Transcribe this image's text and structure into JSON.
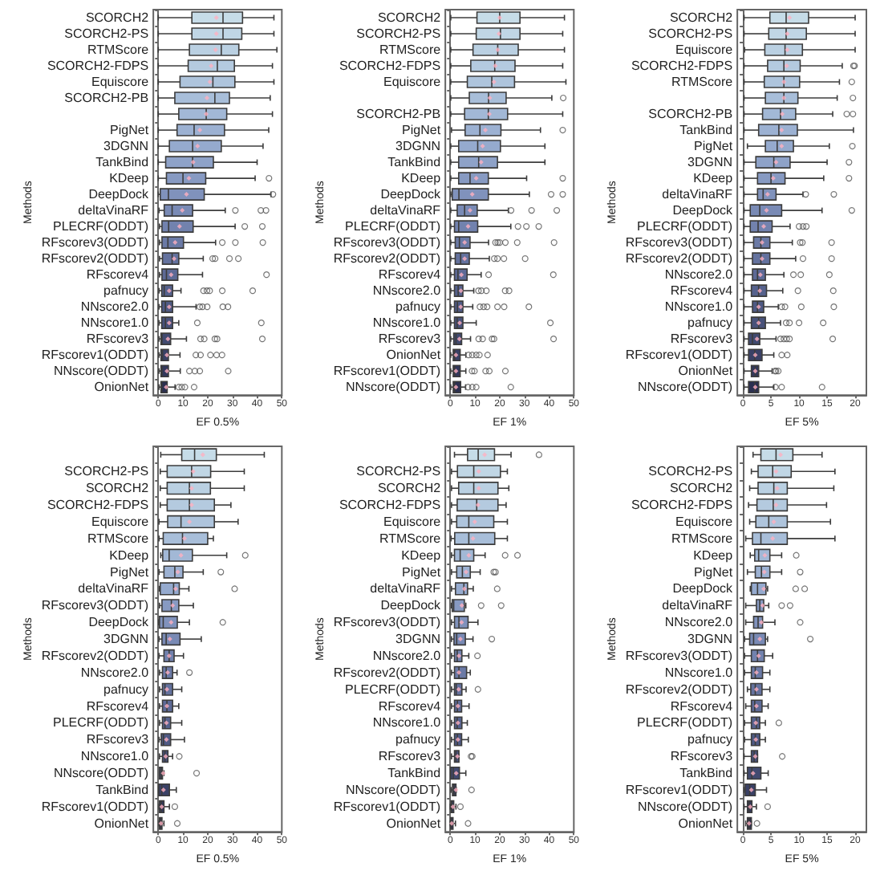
{
  "chart_data": [
    {
      "type": "box",
      "orientation": "horizontal",
      "xlabel": "EF 0.5%",
      "ylabel": "Methods",
      "xlim": [
        -2,
        50
      ],
      "xticks": [
        0,
        10,
        20,
        30,
        40,
        50
      ],
      "categories": [
        "SCORCH2",
        "SCORCH2-PS",
        "RTMScore",
        "SCORCH2-FDPS",
        "Equiscore",
        "SCORCH2-PB",
        null,
        "PigNet",
        "3DGNN",
        "TankBind",
        "KDeep",
        "DeepDock",
        "deltaVinaRF",
        "PLECRF(ODDT)",
        "RFscorev3(ODDT)",
        "RFscorev2(ODDT)",
        "RFscorev4",
        "pafnucy",
        "NNscore2.0",
        "NNscore1.0",
        "RFscorev3",
        "RFscorev1(ODDT)",
        "NNscore(ODDT)",
        "OnionNet"
      ],
      "colors": [
        "#c6dce8",
        "#c0d6e5",
        "#bad0e2",
        "#b4cadf",
        "#aec4dc",
        "#a8bed9",
        "#a2b8d6",
        "#9cb1d2",
        "#95aace",
        "#8ea2c8",
        "#879ac2",
        "#8092bc",
        "#798ab5",
        "#7282ae",
        "#6b7aa6",
        "#64729e",
        "#5d6a96",
        "#56628d",
        "#4f5a84",
        "#48527a",
        "#414a70",
        "#3a4166",
        "#33385b",
        "#2b2f50"
      ],
      "boxes": [
        {
          "low": 0,
          "q1": 13.6,
          "median": 26.2,
          "q3": 34.1,
          "high": 46.8,
          "mean": 23.5
        },
        {
          "low": 0,
          "q1": 13.6,
          "median": 26.2,
          "q3": 33.8,
          "high": 46.8,
          "mean": 23.5
        },
        {
          "low": 0,
          "q1": 12.6,
          "median": 25.5,
          "q3": 32.6,
          "high": 48,
          "mean": 23.2
        },
        {
          "low": 0,
          "q1": 12.1,
          "median": 23.9,
          "q3": 30.8,
          "high": 46.2,
          "mean": 21.4
        },
        {
          "low": 0,
          "q1": 8.8,
          "median": 22.1,
          "q3": 31,
          "high": 46.8,
          "mean": 20.9
        },
        {
          "low": 0,
          "q1": 6.7,
          "median": 22.9,
          "q3": 28.8,
          "high": 45.3,
          "mean": 19.7
        },
        {
          "low": 0,
          "q1": 8.3,
          "median": 19.4,
          "q3": 27.7,
          "high": 46.2,
          "mean": 19.4
        },
        {
          "low": 0,
          "q1": 7.6,
          "median": 14.5,
          "q3": 26.8,
          "high": 44.7,
          "mean": 16.8
        },
        {
          "low": 0,
          "q1": 4.5,
          "median": 13.9,
          "q3": 25.5,
          "high": 42.4,
          "mean": 15.9
        },
        {
          "low": 0,
          "q1": 3,
          "median": 13.9,
          "q3": 22.3,
          "high": 40,
          "mean": 14.1
        },
        {
          "low": 0,
          "q1": 3.3,
          "median": 10,
          "q3": 19.2,
          "high": 39.2,
          "mean": 12.4,
          "outliers": [
            44.8
          ]
        },
        {
          "low": 0,
          "q1": 0.8,
          "median": 4.1,
          "q3": 18.6,
          "high": 45.6,
          "mean": 11.4,
          "outliers": [
            46.4
          ]
        },
        {
          "low": 0.3,
          "q1": 2.4,
          "median": 5.6,
          "q3": 13.9,
          "high": 27.1,
          "mean": 9.7,
          "outliers": [
            31.2,
            41.5,
            43.6
          ]
        },
        {
          "low": 0.5,
          "q1": 1.5,
          "median": 4.2,
          "q3": 14.1,
          "high": 31.1,
          "mean": 8.6,
          "outliers": [
            35,
            42.1
          ]
        },
        {
          "low": 0.5,
          "q1": 1.5,
          "median": 3.9,
          "q3": 10.2,
          "high": 23.2,
          "mean": 6.8,
          "outliers": [
            25.9,
            31.2,
            42.3
          ]
        },
        {
          "low": 0.5,
          "q1": 1.7,
          "median": 5.6,
          "q3": 8.3,
          "high": 18.2,
          "mean": 6.4,
          "outliers": [
            22,
            23,
            28.8,
            32.4
          ]
        },
        {
          "low": 0.5,
          "q1": 1.5,
          "median": 3.3,
          "q3": 7.9,
          "high": 17.9,
          "mean": 5.2,
          "outliers": [
            43.8
          ]
        },
        {
          "low": 0.3,
          "q1": 1.4,
          "median": 2.4,
          "q3": 5.8,
          "high": 9.2,
          "mean": 4.4,
          "outliers": [
            18.3,
            19.7,
            20.8,
            25.9,
            38.2
          ]
        },
        {
          "low": 0.3,
          "q1": 1.4,
          "median": 2.9,
          "q3": 5.8,
          "high": 15.3,
          "mean": 4.4,
          "outliers": [
            16.8,
            17.9,
            19.8,
            26.1,
            28.2
          ]
        },
        {
          "low": 0.3,
          "q1": 1.4,
          "median": 2.9,
          "q3": 5.8,
          "high": 8.3,
          "mean": 4.4,
          "outliers": [
            15.8,
            41.7
          ]
        },
        {
          "low": 0.3,
          "q1": 1.1,
          "median": 1.5,
          "q3": 5,
          "high": 11.4,
          "mean": 3.9,
          "outliers": [
            17.1,
            18.6,
            22.9,
            23.8,
            42.1
          ]
        },
        {
          "low": 0.3,
          "q1": 1.1,
          "median": 1.7,
          "q3": 4.1,
          "high": 8.8,
          "mean": 3.5,
          "outliers": [
            15.2,
            17.1,
            21.1,
            23.6,
            25.8
          ]
        },
        {
          "low": 0.3,
          "q1": 1.1,
          "median": 1.5,
          "q3": 4.1,
          "high": 8.9,
          "mean": 3.5,
          "outliers": [
            12.6,
            14.8,
            16.8,
            28.3
          ]
        },
        {
          "low": 0.3,
          "q1": 1.1,
          "median": 1.4,
          "q3": 3.6,
          "high": 6.8,
          "mean": 3.2,
          "outliers": [
            8.3,
            9.5,
            10.8,
            14.5
          ]
        }
      ]
    },
    {
      "type": "box",
      "orientation": "horizontal",
      "xlabel": "EF 1%",
      "ylabel": "Methods",
      "xlim": [
        -2,
        50
      ],
      "xticks": [
        0,
        10,
        20,
        30,
        40,
        50
      ],
      "categories": [
        "SCORCH2",
        "SCORCH2-PS",
        "RTMScore",
        "SCORCH2-FDPS",
        "Equiscore",
        null,
        "SCORCH2-PB",
        "PigNet",
        "3DGNN",
        "TankBind",
        "KDeep",
        "DeepDock",
        "deltaVinaRF",
        "PLECRF(ODDT)",
        "RFscorev3(ODDT)",
        "RFscorev2(ODDT)",
        "RFscorev4",
        "NNscore2.0",
        "pafnucy",
        "NNscore1.0",
        "RFscorev3",
        "OnionNet",
        "RFscorev1(ODDT)",
        "NNscore(ODDT)"
      ],
      "colors": [
        "#c6dce8",
        "#c0d6e5",
        "#bad0e2",
        "#b4cadf",
        "#aec4dc",
        "#a8bed9",
        "#a2b8d6",
        "#9cb1d2",
        "#95aace",
        "#8ea2c8",
        "#879ac2",
        "#8092bc",
        "#798ab5",
        "#7282ae",
        "#6b7aa6",
        "#64729e",
        "#5d6a96",
        "#56628d",
        "#4f5a84",
        "#48527a",
        "#414a70",
        "#3a4166",
        "#33385b",
        "#2b2f50"
      ],
      "boxes": [
        {
          "low": 0.2,
          "q1": 10.8,
          "median": 20,
          "q3": 28.2,
          "high": 46.2,
          "mean": 20
        },
        {
          "low": 0.2,
          "q1": 10.5,
          "median": 20.3,
          "q3": 28.2,
          "high": 45.5,
          "mean": 19.7
        },
        {
          "low": 0.2,
          "q1": 9.2,
          "median": 19.2,
          "q3": 27.5,
          "high": 46.2,
          "mean": 19.2
        },
        {
          "low": 0.2,
          "q1": 8.3,
          "median": 18,
          "q3": 26.2,
          "high": 45.5,
          "mean": 18.2
        },
        {
          "low": 0.2,
          "q1": 6.9,
          "median": 16.8,
          "q3": 26,
          "high": 46.8,
          "mean": 17.7
        },
        {
          "low": 0.2,
          "q1": 7.7,
          "median": 15.5,
          "q3": 22.6,
          "high": 41.1,
          "mean": 16,
          "outliers": [
            45.7
          ]
        },
        {
          "low": 0.2,
          "q1": 5.8,
          "median": 15.4,
          "q3": 23.2,
          "high": 45.5,
          "mean": 15.8
        },
        {
          "low": 0.5,
          "q1": 6,
          "median": 12,
          "q3": 20.5,
          "high": 36.5,
          "mean": 14.2,
          "outliers": [
            45.5
          ]
        },
        {
          "low": 0.2,
          "q1": 3.4,
          "median": 11.1,
          "q3": 20.3,
          "high": 38.3,
          "mean": 13.1
        },
        {
          "low": 0.2,
          "q1": 3.4,
          "median": 11.5,
          "q3": 19.1,
          "high": 38.3,
          "mean": 12.5
        },
        {
          "low": 0.2,
          "q1": 3.4,
          "median": 8,
          "q3": 15.4,
          "high": 30.9,
          "mean": 10.5,
          "outliers": [
            45.5
          ]
        },
        {
          "low": 0.2,
          "q1": 0.8,
          "median": 3.5,
          "q3": 15.4,
          "high": 32,
          "mean": 8.9,
          "outliers": [
            40.8,
            45.5
          ]
        },
        {
          "low": 0.2,
          "q1": 2.8,
          "median": 5.8,
          "q3": 10.9,
          "high": 23.5,
          "mean": 8,
          "outliers": [
            24.6,
            32.9,
            43.1
          ]
        },
        {
          "low": 0.2,
          "q1": 1.7,
          "median": 3.4,
          "q3": 11.1,
          "high": 24.5,
          "mean": 7.2,
          "outliers": [
            27.4,
            30.8,
            35.8
          ]
        },
        {
          "low": 0.2,
          "q1": 2,
          "median": 3.7,
          "q3": 8,
          "high": 15.5,
          "mean": 5.8,
          "outliers": [
            18.3,
            19.2,
            20,
            22.3,
            27.1,
            42
          ]
        },
        {
          "low": 0.2,
          "q1": 2,
          "median": 4.2,
          "q3": 7.7,
          "high": 15.8,
          "mean": 5.8,
          "outliers": [
            17.8,
            19.1,
            21.7,
            30.3
          ]
        },
        {
          "low": 0.2,
          "q1": 1.7,
          "median": 3.1,
          "q3": 6.8,
          "high": 12.5,
          "mean": 4.5,
          "outliers": [
            15.5,
            41.7
          ]
        },
        {
          "low": 0.2,
          "q1": 1.7,
          "median": 3.2,
          "q3": 5.1,
          "high": 9.5,
          "mean": 4.3,
          "outliers": [
            11.4,
            12.6,
            14.6,
            22.2,
            23.8
          ]
        },
        {
          "low": 0.2,
          "q1": 1.7,
          "median": 2.9,
          "q3": 5.1,
          "high": 9.1,
          "mean": 4.2,
          "outliers": [
            12,
            13.5,
            14.9,
            19.1,
            21.8,
            31.8
          ]
        },
        {
          "low": 0.2,
          "q1": 1.7,
          "median": 2.8,
          "q3": 5.1,
          "high": 10.5,
          "mean": 3.8,
          "outliers": [
            40.5
          ]
        },
        {
          "low": 0.2,
          "q1": 1.4,
          "median": 2.3,
          "q3": 4.6,
          "high": 8.2,
          "mean": 3.7,
          "outliers": [
            11.5,
            13.1,
            16.9,
            17.7,
            41.8
          ]
        },
        {
          "low": 0.2,
          "q1": 1.2,
          "median": 1.8,
          "q3": 4,
          "high": 6.3,
          "mean": 2.3,
          "outliers": [
            7.4,
            8.9,
            10.5,
            11.8,
            15.1
          ]
        },
        {
          "low": 0.2,
          "q1": 1.2,
          "median": 1.8,
          "q3": 4,
          "high": 6.3,
          "mean": 2.3,
          "outliers": [
            8.8,
            9.8,
            14.3,
            15.8,
            22.3
          ]
        },
        {
          "low": 0.2,
          "q1": 1.2,
          "median": 1.8,
          "q3": 4.2,
          "high": 6.2,
          "mean": 2.3,
          "outliers": [
            7.2,
            8.9,
            10.5,
            24.5
          ]
        }
      ]
    },
    {
      "type": "box",
      "orientation": "horizontal",
      "xlabel": "EF 5%",
      "ylabel": "Methods",
      "xlim": [
        -1,
        22
      ],
      "xticks": [
        0,
        5,
        10,
        15,
        20
      ],
      "categories": [
        "SCORCH2",
        "SCORCH2-PS",
        "Equiscore",
        "SCORCH2-FDPS",
        "RTMScore",
        null,
        "SCORCH2-PB",
        "TankBind",
        "PigNet",
        "3DGNN",
        "KDeep",
        "deltaVinaRF",
        "DeepDock",
        "PLECRF(ODDT)",
        "RFscorev3(ODDT)",
        "RFscorev2(ODDT)",
        "NNscore2.0",
        "RFscorev4",
        "NNscore1.0",
        "pafnucy",
        "RFscorev3",
        "RFscorev1(ODDT)",
        "OnionNet",
        "NNscore(ODDT)"
      ],
      "colors": [
        "#c6dce8",
        "#c0d6e5",
        "#bad0e2",
        "#b4cadf",
        "#aec4dc",
        "#a8bed9",
        "#a2b8d6",
        "#9cb1d2",
        "#95aace",
        "#8ea2c8",
        "#879ac2",
        "#8092bc",
        "#798ab5",
        "#7282ae",
        "#6b7aa6",
        "#64729e",
        "#5d6a96",
        "#56628d",
        "#4f5a84",
        "#48527a",
        "#414a70",
        "#3a4166",
        "#33385b",
        "#2b2f50"
      ],
      "boxes": [
        {
          "low": 0.2,
          "q1": 4.8,
          "median": 7.7,
          "q3": 11.7,
          "high": 20,
          "mean": 8.3
        },
        {
          "low": 0.2,
          "q1": 4.6,
          "median": 7.7,
          "q3": 11.3,
          "high": 20,
          "mean": 7.9
        },
        {
          "low": 0.3,
          "q1": 3.9,
          "median": 7.5,
          "q3": 10.6,
          "high": 20,
          "mean": 7.9
        },
        {
          "low": 0.2,
          "q1": 4.4,
          "median": 7.3,
          "q3": 10.2,
          "high": 17.7,
          "mean": 7.8,
          "outliers": [
            19.7,
            19.9
          ]
        },
        {
          "low": 0.2,
          "q1": 3.8,
          "median": 7.3,
          "q3": 10.1,
          "high": 17.2,
          "mean": 7.3,
          "outliers": [
            19.4
          ]
        },
        {
          "low": 0.2,
          "q1": 4,
          "median": 7.3,
          "q3": 9.8,
          "high": 16.8,
          "mean": 7.3,
          "outliers": [
            19.6
          ]
        },
        {
          "low": 0.2,
          "q1": 3.5,
          "median": 6.7,
          "q3": 9.4,
          "high": 16,
          "mean": 7,
          "outliers": [
            18.5,
            19.6
          ]
        },
        {
          "low": 0.2,
          "q1": 2.8,
          "median": 6.4,
          "q3": 9.7,
          "high": 19.7,
          "mean": 6.9
        },
        {
          "low": 0.8,
          "q1": 4,
          "median": 6.1,
          "q3": 9,
          "high": 15.4,
          "mean": 6.9,
          "outliers": [
            19.5
          ]
        },
        {
          "low": 0.2,
          "q1": 2.3,
          "median": 5.5,
          "q3": 8.4,
          "high": 15,
          "mean": 5.9,
          "outliers": [
            18.9
          ]
        },
        {
          "low": 0.2,
          "q1": 2.6,
          "median": 5,
          "q3": 7.5,
          "high": 14.4,
          "mean": 5.4,
          "outliers": [
            18.9
          ]
        },
        {
          "low": 0.2,
          "q1": 2.6,
          "median": 3.6,
          "q3": 5.9,
          "high": 10.7,
          "mean": 4.4,
          "outliers": [
            11.2,
            16.2
          ]
        },
        {
          "low": 0.2,
          "q1": 1.3,
          "median": 3,
          "q3": 6.9,
          "high": 14.1,
          "mean": 4.2,
          "outliers": [
            19.4
          ]
        },
        {
          "low": 0.2,
          "q1": 1.3,
          "median": 2.7,
          "q3": 5.2,
          "high": 8.4,
          "mean": 3.7,
          "outliers": [
            10,
            10.7,
            11.3
          ]
        },
        {
          "low": 0.2,
          "q1": 1.9,
          "median": 3.2,
          "q3": 4.8,
          "high": 8.8,
          "mean": 3.4,
          "outliers": [
            10.2,
            10.6,
            15.8
          ]
        },
        {
          "low": 0.2,
          "q1": 1.7,
          "median": 3.2,
          "q3": 4.8,
          "high": 9.4,
          "mean": 3.4,
          "outliers": [
            10.7,
            15.8
          ]
        },
        {
          "low": 0.2,
          "q1": 1.7,
          "median": 2.6,
          "q3": 4,
          "high": 7.3,
          "mean": 3.1,
          "outliers": [
            9,
            10.3,
            15.4
          ]
        },
        {
          "low": 0.2,
          "q1": 1.5,
          "median": 2.8,
          "q3": 4.2,
          "high": 7.1,
          "mean": 3,
          "outliers": [
            9.8,
            16.1
          ]
        },
        {
          "low": 0.2,
          "q1": 1.7,
          "median": 2.6,
          "q3": 3.7,
          "high": 6.3,
          "mean": 2.8,
          "outliers": [
            6.9,
            7.5,
            10.4,
            16.2
          ]
        },
        {
          "low": 0.2,
          "q1": 1.5,
          "median": 2.8,
          "q3": 4,
          "high": 6.7,
          "mean": 2.8,
          "outliers": [
            7.7,
            8.3,
            10,
            14.3
          ]
        },
        {
          "low": 0.2,
          "q1": 1,
          "median": 1.7,
          "q3": 3,
          "high": 5.9,
          "mean": 2.5,
          "outliers": [
            6.7,
            7.3,
            7.8,
            8.3,
            16
          ]
        },
        {
          "low": 0.2,
          "q1": 1,
          "median": 2.1,
          "q3": 3.4,
          "high": 5.5,
          "mean": 2.2,
          "outliers": [
            6.9,
            7.9
          ]
        },
        {
          "low": 0.2,
          "q1": 1.5,
          "median": 2.2,
          "q3": 2.8,
          "high": 5.2,
          "mean": 2.2,
          "outliers": [
            5.7,
            5.9,
            6.3
          ]
        },
        {
          "low": 0.2,
          "q1": 1,
          "median": 2.1,
          "q3": 2.8,
          "high": 5.5,
          "mean": 2.2,
          "outliers": [
            5.8,
            6.9,
            14.1
          ]
        }
      ]
    },
    {
      "type": "box",
      "orientation": "horizontal",
      "xlabel": "EF 0.5%",
      "ylabel": "Methods",
      "xlim": [
        -2,
        50
      ],
      "xticks": [
        0,
        10,
        20,
        30,
        40,
        50
      ],
      "categories": [
        null,
        "SCORCH2-PS",
        "SCORCH2",
        "SCORCH2-FDPS",
        "Equiscore",
        "RTMScore",
        "KDeep",
        "PigNet",
        "deltaVinaRF",
        "RFscorev3(ODDT)",
        "DeepDock",
        "3DGNN",
        "RFscorev2(ODDT)",
        "NNscore2.0",
        "pafnucy",
        "RFscorev4",
        "PLECRF(ODDT)",
        "RFscorev3",
        "NNscore1.0",
        "NNscore(ODDT)",
        "TankBind",
        "RFscorev1(ODDT)",
        "OnionNet"
      ],
      "colors": [
        "#c6dce8",
        "#c0d6e5",
        "#bad0e2",
        "#b4cadf",
        "#aec4dc",
        "#a8bed9",
        "#a2b8d6",
        "#9cb1d2",
        "#95aace",
        "#879ac2",
        "#8092bc",
        "#798ab5",
        "#7282ae",
        "#6b7aa6",
        "#64729e",
        "#5d6a96",
        "#56628d",
        "#4f5a84",
        "#48527a",
        "#414a70",
        "#3a4166",
        "#33385b",
        "#2b2f50"
      ],
      "boxes": [
        {
          "low": 1,
          "q1": 9.5,
          "median": 14.7,
          "q3": 23.5,
          "high": 42.9,
          "mean": 18
        },
        {
          "low": 0.8,
          "q1": 3.6,
          "median": 13.5,
          "q3": 21.2,
          "high": 34.8,
          "mean": 14.1
        },
        {
          "low": 0.8,
          "q1": 3.6,
          "median": 12.6,
          "q3": 21.1,
          "high": 34.8,
          "mean": 13.5
        },
        {
          "low": 0.8,
          "q1": 3.6,
          "median": 12.6,
          "q3": 22.7,
          "high": 29.4,
          "mean": 13.5
        },
        {
          "low": 0.3,
          "q1": 3.8,
          "median": 9.2,
          "q3": 22.7,
          "high": 32.3,
          "mean": 12.6
        },
        {
          "low": 0.3,
          "q1": 2,
          "median": 9.8,
          "q3": 20,
          "high": 22.3,
          "mean": 10.6
        },
        {
          "low": 1,
          "q1": 1.8,
          "median": 4.4,
          "q3": 13.8,
          "high": 27.7,
          "mean": 9.2,
          "outliers": [
            35.2
          ]
        },
        {
          "low": 0.3,
          "q1": 2.3,
          "median": 6.7,
          "q3": 10,
          "high": 18.2,
          "mean": 7.9,
          "outliers": [
            25.3
          ]
        },
        {
          "low": 0.5,
          "q1": 0.8,
          "median": 6.2,
          "q3": 8.5,
          "high": 12.4,
          "mean": 7,
          "outliers": [
            30.9
          ]
        },
        {
          "low": 0.5,
          "q1": 1.5,
          "median": 5.3,
          "q3": 8.3,
          "high": 14.2,
          "mean": 5.8
        },
        {
          "low": 0.2,
          "q1": 0.5,
          "median": 2,
          "q3": 7.7,
          "high": 12.6,
          "mean": 5.2,
          "outliers": [
            26.1
          ]
        },
        {
          "low": 0.3,
          "q1": 1.5,
          "median": 3.2,
          "q3": 8.8,
          "high": 17.4,
          "mean": 4.7
        },
        {
          "low": 0.3,
          "q1": 2.3,
          "median": 4.4,
          "q3": 6.4,
          "high": 10.2,
          "mean": 4.4
        },
        {
          "low": 0.5,
          "q1": 1.7,
          "median": 3.2,
          "q3": 5.8,
          "high": 7.6,
          "mean": 3.8,
          "outliers": [
            12.6
          ]
        },
        {
          "low": 0.5,
          "q1": 1.7,
          "median": 2.7,
          "q3": 5.8,
          "high": 9.5,
          "mean": 3.5
        },
        {
          "low": 0.5,
          "q1": 1.7,
          "median": 3.5,
          "q3": 5.8,
          "high": 8.3,
          "mean": 3.5
        },
        {
          "low": 0.5,
          "q1": 1.7,
          "median": 2.7,
          "q3": 5,
          "high": 9.5,
          "mean": 3.3
        },
        {
          "low": 0.3,
          "q1": 1.2,
          "median": 2.1,
          "q3": 5,
          "high": 10.6,
          "mean": 3.3
        },
        {
          "low": 0.5,
          "q1": 1.7,
          "median": 2.7,
          "q3": 3.9,
          "high": 5.8,
          "mean": 3,
          "outliers": [
            8.5
          ]
        },
        {
          "low": 0.5,
          "q1": 0.5,
          "median": 1.2,
          "q3": 1.7,
          "high": 2.3,
          "mean": 2,
          "outliers": [
            15.5
          ]
        },
        {
          "low": 0.2,
          "q1": 0.2,
          "median": 1.4,
          "q3": 4.5,
          "high": 7.3,
          "mean": 2.1
        },
        {
          "low": 0.3,
          "q1": 0.5,
          "median": 1.2,
          "q3": 2.3,
          "high": 4.5,
          "mean": 1.4,
          "outliers": [
            6.7
          ]
        },
        {
          "low": 0.3,
          "q1": 0.5,
          "median": 0.8,
          "q3": 1.5,
          "high": 2.3,
          "mean": 1.1,
          "outliers": [
            7.7
          ]
        }
      ]
    },
    {
      "type": "box",
      "orientation": "horizontal",
      "xlabel": "EF 1%",
      "ylabel": "Methods",
      "xlim": [
        -2,
        50
      ],
      "xticks": [
        0,
        10,
        20,
        30,
        40,
        50
      ],
      "categories": [
        null,
        "SCORCH2-PS",
        "SCORCH2",
        "SCORCH2-FDPS",
        "Equiscore",
        "RTMScore",
        "KDeep",
        "PigNet",
        "deltaVinaRF",
        "DeepDock",
        "RFscorev3(ODDT)",
        "3DGNN",
        "NNscore2.0",
        "RFscorev2(ODDT)",
        "PLECRF(ODDT)",
        "RFscorev4",
        "NNscore1.0",
        "pafnucy",
        "RFscorev3",
        "TankBind",
        "NNscore(ODDT)",
        "RFscorev1(ODDT)",
        "OnionNet"
      ],
      "colors": [
        "#c6dce8",
        "#c0d6e5",
        "#bad0e2",
        "#b4cadf",
        "#aec4dc",
        "#a8bed9",
        "#a2b8d6",
        "#9cb1d2",
        "#95aace",
        "#879ac2",
        "#8092bc",
        "#798ab5",
        "#7282ae",
        "#6b7aa6",
        "#64729e",
        "#5d6a96",
        "#56628d",
        "#4f5a84",
        "#48527a",
        "#414a70",
        "#3a4166",
        "#33385b",
        "#2b2f50"
      ],
      "boxes": [
        {
          "low": 1.7,
          "q1": 7,
          "median": 11.3,
          "q3": 17.9,
          "high": 24.6,
          "mean": 13.9,
          "outliers": [
            35.9
          ]
        },
        {
          "low": 0.5,
          "q1": 2.9,
          "median": 9.5,
          "q3": 20.3,
          "high": 23.1,
          "mean": 11.5
        },
        {
          "low": 0.5,
          "q1": 3.4,
          "median": 9.5,
          "q3": 19.3,
          "high": 23.7,
          "mean": 11.5
        },
        {
          "low": 0.5,
          "q1": 2.8,
          "median": 10.7,
          "q3": 19.3,
          "high": 22.6,
          "mean": 11.2
        },
        {
          "low": 0.5,
          "q1": 2.6,
          "median": 7.5,
          "q3": 17.6,
          "high": 23.1,
          "mean": 9.9
        },
        {
          "low": 0.3,
          "q1": 1.8,
          "median": 7.5,
          "q3": 18,
          "high": 23.1,
          "mean": 9.2
        },
        {
          "low": 0.5,
          "q1": 1.7,
          "median": 4,
          "q3": 9.5,
          "high": 14.1,
          "mean": 7.5,
          "outliers": [
            22.2,
            27.2
          ]
        },
        {
          "low": 0.5,
          "q1": 2.6,
          "median": 4.9,
          "q3": 8.1,
          "high": 12.1,
          "mean": 6.4,
          "outliers": [
            17.6,
            18.3
          ]
        },
        {
          "low": 0.5,
          "q1": 2.1,
          "median": 5.5,
          "q3": 7,
          "high": 9.3,
          "mean": 5.7,
          "outliers": [
            19
          ]
        },
        {
          "low": 0.5,
          "q1": 0.8,
          "median": 1.4,
          "q3": 5.7,
          "high": 6.3,
          "mean": 4.7,
          "outliers": [
            12.5,
            20.6
          ]
        },
        {
          "low": 0.5,
          "q1": 1.7,
          "median": 3.5,
          "q3": 7.2,
          "high": 11.2,
          "mean": 4.6
        },
        {
          "low": 0.5,
          "q1": 1.5,
          "median": 2.6,
          "q3": 6.1,
          "high": 9.2,
          "mean": 4.1,
          "outliers": [
            16.8
          ]
        },
        {
          "low": 0.5,
          "q1": 1.7,
          "median": 2.8,
          "q3": 4.7,
          "high": 7.5,
          "mean": 3.5,
          "outliers": [
            11
          ]
        },
        {
          "low": 0.5,
          "q1": 1.7,
          "median": 3.5,
          "q3": 6.6,
          "high": 8.1,
          "mean": 3.5
        },
        {
          "low": 0.5,
          "q1": 1.7,
          "median": 2.4,
          "q3": 4.7,
          "high": 6.4,
          "mean": 3.4,
          "outliers": [
            11.2
          ]
        },
        {
          "low": 0.5,
          "q1": 1.7,
          "median": 2.9,
          "q3": 4.6,
          "high": 7.6,
          "mean": 3.1
        },
        {
          "low": 0.5,
          "q1": 1.7,
          "median": 2.8,
          "q3": 4.7,
          "high": 6.9,
          "mean": 3.1
        },
        {
          "low": 0.5,
          "q1": 1.7,
          "median": 2.9,
          "q3": 4.6,
          "high": 7.3,
          "mean": 3.1
        },
        {
          "low": 0.5,
          "q1": 1.7,
          "median": 2.3,
          "q3": 3.5,
          "high": 3.5,
          "mean": 2.9,
          "outliers": [
            8.4,
            8.9
          ]
        },
        {
          "low": 0.2,
          "q1": 0.2,
          "median": 1.2,
          "q3": 3.7,
          "high": 6.3,
          "mean": 2.4
        },
        {
          "low": 0.3,
          "q1": 0.9,
          "median": 1.5,
          "q3": 2.3,
          "high": 2.4,
          "mean": 2.3,
          "outliers": [
            8.6
          ]
        },
        {
          "low": 0,
          "q1": 0.3,
          "median": 0.6,
          "q3": 1.4,
          "high": 2.3,
          "mean": 1.1,
          "outliers": [
            4.1
          ]
        },
        {
          "low": 0,
          "q1": 0.2,
          "median": 0.3,
          "q3": 1.1,
          "high": 2.1,
          "mean": 0.6,
          "outliers": [
            7.2
          ]
        }
      ]
    },
    {
      "type": "box",
      "orientation": "horizontal",
      "xlabel": "EF 5%",
      "ylabel": "Methods",
      "xlim": [
        -1,
        22
      ],
      "xticks": [
        0,
        5,
        10,
        15,
        20
      ],
      "categories": [
        null,
        "SCORCH2-PS",
        "SCORCH2",
        "SCORCH2-FDPS",
        "Equiscore",
        "RTMScore",
        "KDeep",
        "PigNet",
        "DeepDock",
        "deltaVinaRF",
        "NNscore2.0",
        "3DGNN",
        "RFscorev3(ODDT)",
        "NNscore1.0",
        "RFscorev2(ODDT)",
        "RFscorev4",
        "PLECRF(ODDT)",
        "pafnucy",
        "RFscorev3",
        "TankBind",
        "RFscorev1(ODDT)",
        "NNscore(ODDT)",
        "OnionNet"
      ],
      "colors": [
        "#c6dce8",
        "#c0d6e5",
        "#bad0e2",
        "#b4cadf",
        "#aec4dc",
        "#a8bed9",
        "#a2b8d6",
        "#9cb1d2",
        "#95aace",
        "#879ac2",
        "#8092bc",
        "#798ab5",
        "#7282ae",
        "#6b7aa6",
        "#64729e",
        "#5d6a96",
        "#56628d",
        "#4f5a84",
        "#48527a",
        "#414a70",
        "#3a4166",
        "#33385b",
        "#2b2f50"
      ],
      "boxes": [
        {
          "low": 1.8,
          "q1": 3.2,
          "median": 5.9,
          "q3": 8.9,
          "high": 14.1,
          "mean": 6.7
        },
        {
          "low": 1.5,
          "q1": 2.7,
          "median": 5.3,
          "q3": 8.6,
          "high": 16.4,
          "mean": 5.9
        },
        {
          "low": 1.2,
          "q1": 2.7,
          "median": 5.5,
          "q3": 7.9,
          "high": 16.2,
          "mean": 6.1
        },
        {
          "low": 1,
          "q1": 2.5,
          "median": 5.4,
          "q3": 7.9,
          "high": 14.9,
          "mean": 5.9
        },
        {
          "low": 1.2,
          "q1": 2.3,
          "median": 4.6,
          "q3": 7.9,
          "high": 15.6,
          "mean": 5.5
        },
        {
          "low": 0.5,
          "q1": 1.7,
          "median": 3.2,
          "q3": 7.9,
          "high": 16.4,
          "mean": 5.3
        },
        {
          "low": 1.3,
          "q1": 2.1,
          "median": 2.8,
          "q3": 4.8,
          "high": 6.9,
          "mean": 3.9,
          "outliers": [
            9.5
          ]
        },
        {
          "low": 0.8,
          "q1": 2.2,
          "median": 3.3,
          "q3": 4.8,
          "high": 6.9,
          "mean": 3.8,
          "outliers": [
            10.2
          ]
        },
        {
          "low": 1.3,
          "q1": 1.5,
          "median": 2.6,
          "q3": 4.1,
          "high": 4.4,
          "mean": 3.7,
          "outliers": [
            9.4,
            11
          ]
        },
        {
          "low": 0.5,
          "q1": 2.4,
          "median": 3,
          "q3": 3.7,
          "high": 4.6,
          "mean": 3.5,
          "outliers": [
            6.9,
            8.4
          ]
        },
        {
          "low": 0.5,
          "q1": 1.9,
          "median": 2.7,
          "q3": 3.5,
          "high": 5.7,
          "mean": 3.3,
          "outliers": [
            10.2
          ]
        },
        {
          "low": 0.3,
          "q1": 1.2,
          "median": 1.9,
          "q3": 4,
          "high": 4.4,
          "mean": 3,
          "outliers": [
            12
          ]
        },
        {
          "low": 0.3,
          "q1": 1.5,
          "median": 2.6,
          "q3": 3.8,
          "high": 5.3,
          "mean": 2.8
        },
        {
          "low": 0.3,
          "q1": 1.5,
          "median": 2.2,
          "q3": 3.5,
          "high": 4.8,
          "mean": 2.4
        },
        {
          "low": 0.8,
          "q1": 1.4,
          "median": 2.2,
          "q3": 3.4,
          "high": 4.8,
          "mean": 2.4
        },
        {
          "low": 0.5,
          "q1": 1.5,
          "median": 2.1,
          "q3": 3.4,
          "high": 4.5,
          "mean": 2.4
        },
        {
          "low": 0.3,
          "q1": 1.5,
          "median": 2.4,
          "q3": 3,
          "high": 4,
          "mean": 2.3,
          "outliers": [
            6.4
          ]
        },
        {
          "low": 0.3,
          "q1": 1.5,
          "median": 2.2,
          "q3": 3,
          "high": 4,
          "mean": 2.3
        },
        {
          "low": 0.2,
          "q1": 1.5,
          "median": 2,
          "q3": 2.6,
          "high": 2.6,
          "mean": 2.2,
          "outliers": [
            7
          ]
        },
        {
          "low": 0.2,
          "q1": 0.8,
          "median": 1.6,
          "q3": 3.2,
          "high": 4.5,
          "mean": 1.8
        },
        {
          "low": 0.2,
          "q1": 0.4,
          "median": 1.2,
          "q3": 2.2,
          "high": 4.2,
          "mean": 1.5
        },
        {
          "low": 0.2,
          "q1": 0.8,
          "median": 1.1,
          "q3": 1.6,
          "high": 2.4,
          "mean": 1.3,
          "outliers": [
            4.4
          ]
        },
        {
          "low": 0.5,
          "q1": 0.8,
          "median": 1.1,
          "q3": 1.5,
          "high": 1.5,
          "mean": 1.1,
          "outliers": [
            2.5
          ]
        }
      ]
    }
  ]
}
